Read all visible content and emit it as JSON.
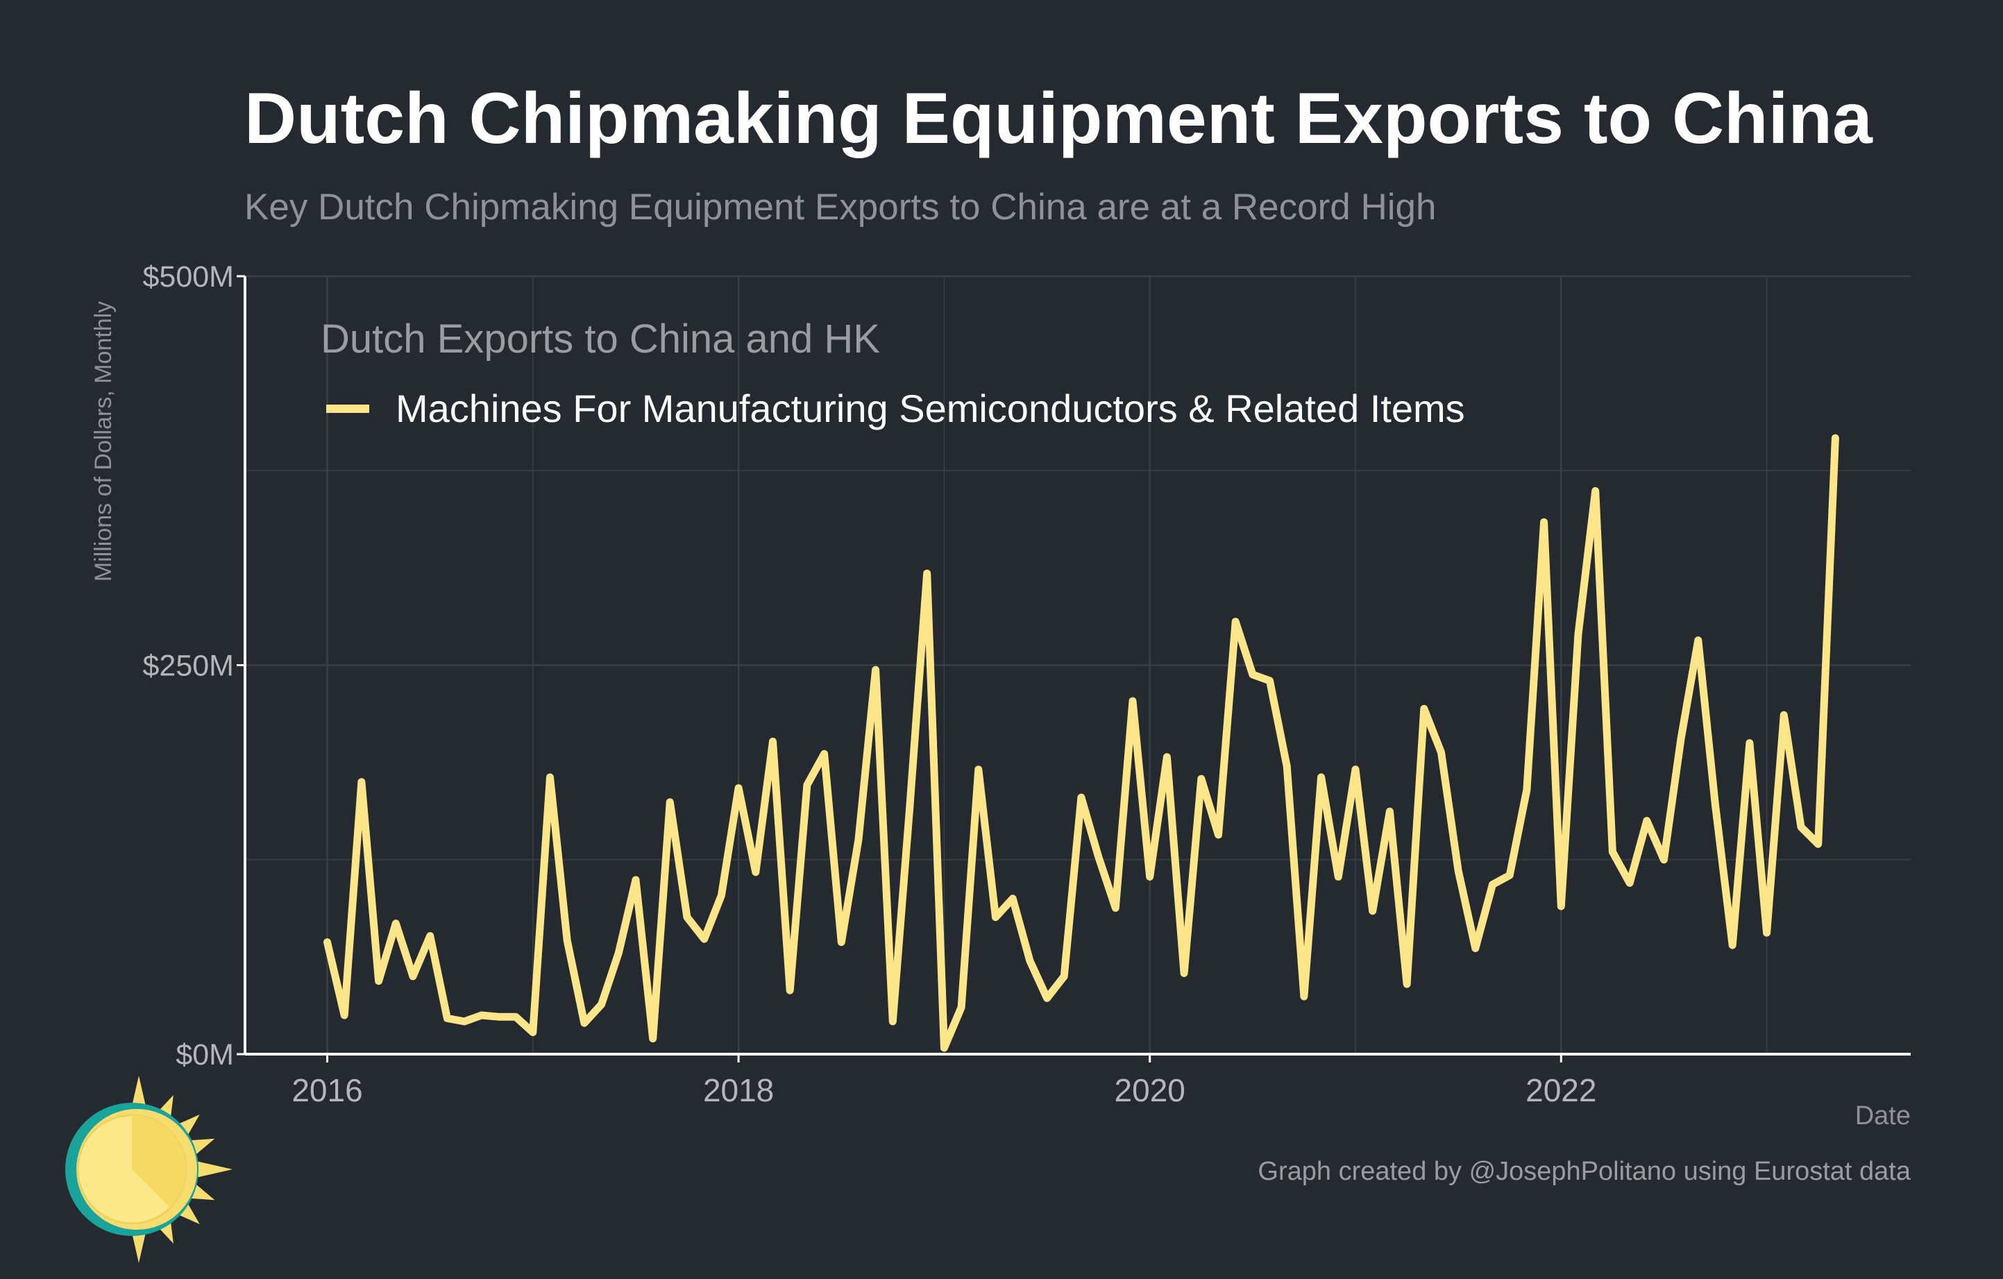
{
  "chart_data": {
    "type": "line",
    "title": "Dutch Chipmaking Equipment Exports to China",
    "subtitle": "Key Dutch Chipmaking Equipment Exports to China are at a Record High",
    "ylabel": "Millions of Dollars, Monthly",
    "xlabel": "Date",
    "ylim": [
      0,
      500
    ],
    "y_ticks": [
      0,
      250,
      500
    ],
    "y_tick_labels": [
      "$0M",
      "$250M",
      "$500M"
    ],
    "x_ticks": [
      2016,
      2018,
      2020,
      2022
    ],
    "x_tick_labels": [
      "2016",
      "2018",
      "2020",
      "2022"
    ],
    "xlim": [
      2015.6,
      2023.7
    ],
    "grid": true,
    "legend_title": "Dutch Exports to China and HK",
    "legend_position": "top-left",
    "series": [
      {
        "name": "Machines For Manufacturing Semiconductors & Related Items",
        "color": "#FDE68A",
        "start": "2016-01",
        "values": [
          72,
          25,
          175,
          47,
          84,
          50,
          76,
          23,
          21,
          25,
          24,
          24,
          14,
          178,
          73,
          20,
          32,
          65,
          112,
          10,
          162,
          88,
          74,
          102,
          171,
          117,
          201,
          41,
          173,
          193,
          72,
          138,
          247,
          21,
          160,
          309,
          4,
          30,
          183,
          88,
          100,
          60,
          36,
          50,
          165,
          127,
          94,
          227,
          114,
          191,
          52,
          177,
          141,
          278,
          244,
          240,
          185,
          37,
          178,
          114,
          183,
          92,
          156,
          45,
          222,
          194,
          118,
          68,
          109,
          115,
          170,
          342,
          95,
          270,
          362,
          130,
          110,
          150,
          125,
          203,
          266,
          160,
          70,
          200,
          78,
          218,
          146,
          135,
          396
        ]
      }
    ],
    "source_note": "Graph created by @JosephPolitano using Eurostat data",
    "colors": {
      "background": "#252930",
      "grid": "#3B3F46",
      "axis": "#FFFFFF",
      "title": "#FFFFFF",
      "muted_text": "#9A9CA0",
      "tick_text": "#B4B6BA",
      "legend_text": "#FFFFFF",
      "sun_yellow": "#F7DC6F",
      "sun_face": "#FCE98A",
      "sun_teal": "#1AA39A"
    }
  }
}
